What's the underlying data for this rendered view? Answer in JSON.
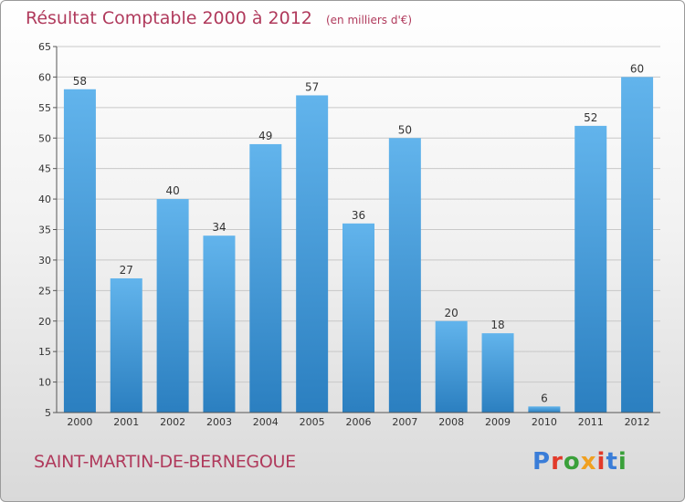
{
  "title": "Résultat Comptable 2000 à 2012",
  "unit": "(en milliers d'€)",
  "commune": "SAINT-MARTIN-DE-BERNEGOUE",
  "logo": {
    "text": "Proxiti",
    "letters": [
      "P",
      "r",
      "o",
      "x",
      "i",
      "t",
      "i"
    ],
    "colors": [
      "#3a7dd8",
      "#e23a2a",
      "#3aa03a",
      "#f0a020",
      "#e23a2a",
      "#3a7dd8",
      "#3aa03a"
    ]
  },
  "colors": {
    "bar_light": "#62b4ec",
    "bar_dark": "#2b7fc0",
    "title": "#b03a5c"
  },
  "chart_data": {
    "type": "bar",
    "title": "Résultat Comptable 2000 à 2012",
    "xlabel": "",
    "ylabel": "",
    "categories": [
      "2000",
      "2001",
      "2002",
      "2003",
      "2004",
      "2005",
      "2006",
      "2007",
      "2008",
      "2009",
      "2010",
      "2011",
      "2012"
    ],
    "values": [
      58,
      27,
      40,
      34,
      49,
      57,
      36,
      50,
      20,
      18,
      6,
      52,
      60
    ],
    "ylim": [
      5,
      65
    ],
    "yticks": [
      5,
      10,
      15,
      20,
      25,
      30,
      35,
      40,
      45,
      50,
      55,
      60,
      65
    ],
    "grid": true
  }
}
